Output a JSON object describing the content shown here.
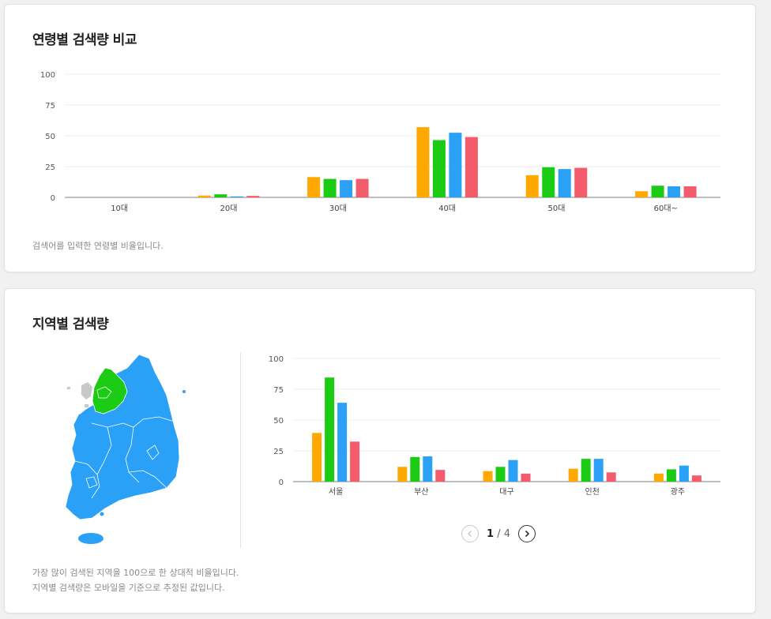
{
  "age_card": {
    "title": "연령별 검색량 비교",
    "note": "검색어를 입력한 연령별 비율입니다."
  },
  "region_card": {
    "title": "지역별 검색량",
    "notes": [
      "가장 많이 검색된 지역을 100으로 한 상대적 비율입니다.",
      "지역별 검색량은 모바일을 기준으로 추정된 값입니다."
    ]
  },
  "colors": {
    "series": [
      "#ffa800",
      "#1ccb14",
      "#2aa1f7",
      "#f45b6b"
    ],
    "map_highlight": "#1ccb14",
    "map_base": "#2aa1f7",
    "map_other": "#c8c8c8"
  },
  "pager": {
    "current": "1",
    "separator": "/",
    "total": "4"
  },
  "chart_data": [
    {
      "type": "bar",
      "categories": [
        "10대",
        "20대",
        "30대",
        "40대",
        "50대",
        "60대~"
      ],
      "series": [
        {
          "values": [
            0,
            1.5,
            16.5,
            57,
            18,
            5
          ]
        },
        {
          "values": [
            0,
            2.5,
            15,
            46.5,
            24.5,
            9.5
          ]
        },
        {
          "values": [
            0,
            0.8,
            14,
            52.5,
            23,
            9
          ]
        },
        {
          "values": [
            0,
            1.2,
            15,
            49,
            24,
            9
          ]
        }
      ],
      "yticks": [
        "0",
        "25",
        "50",
        "75",
        "100"
      ],
      "ylim": [
        0,
        100
      ],
      "grid": true
    },
    {
      "type": "bar",
      "categories": [
        "서울",
        "부산",
        "대구",
        "인천",
        "광주"
      ],
      "series": [
        {
          "values": [
            39.5,
            12,
            8.5,
            10.5,
            6.5
          ]
        },
        {
          "values": [
            84.5,
            20,
            12,
            18.5,
            10
          ]
        },
        {
          "values": [
            64,
            20.5,
            17.5,
            18.5,
            13
          ]
        },
        {
          "values": [
            32.5,
            9.5,
            6.5,
            7.5,
            5
          ]
        }
      ],
      "yticks": [
        "0",
        "25",
        "50",
        "75",
        "100"
      ],
      "ylim": [
        0,
        100
      ],
      "grid": true
    }
  ]
}
